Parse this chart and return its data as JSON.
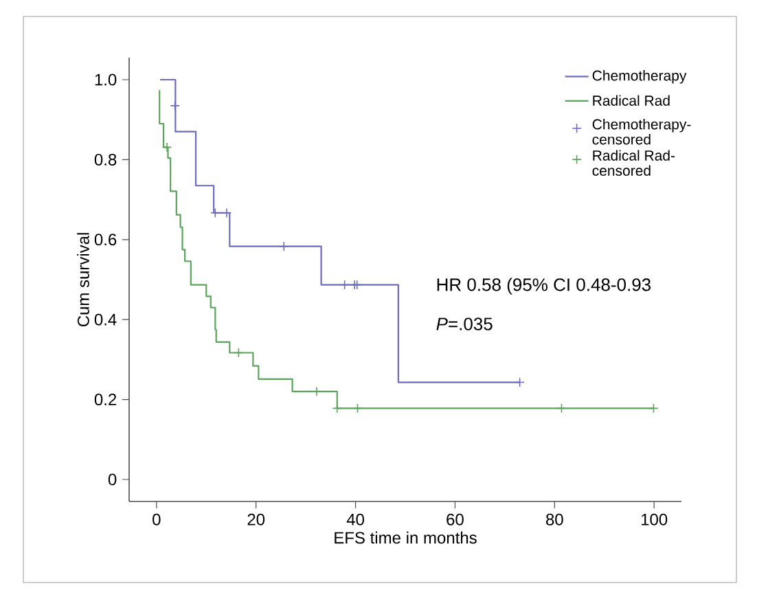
{
  "chart_data": {
    "type": "step",
    "xlabel": "EFS time in months",
    "ylabel": "Cum survival",
    "xlim": [
      -5.5,
      105.5
    ],
    "ylim": [
      -0.055,
      1.055
    ],
    "xticks": [
      0,
      20,
      40,
      60,
      80,
      100
    ],
    "yticks": [
      {
        "value": 0,
        "label": "0"
      },
      {
        "value": 0.2,
        "label": "0.2"
      },
      {
        "value": 0.4,
        "label": "0.4"
      },
      {
        "value": 0.6,
        "label": "0.6"
      },
      {
        "value": 0.8,
        "label": "0.8"
      },
      {
        "value": 1.0,
        "label": "1.0"
      }
    ],
    "legend": "top right",
    "grid": false,
    "annotations": [
      "HR 0.58 (95% CI 0.48-0.93",
      "*P*=.035"
    ],
    "series": [
      {
        "name": "Chemotherapy",
        "marker": "none",
        "color": "#6b6bc0",
        "x": [
          0.7,
          3.8,
          7.9,
          11.5,
          14.7,
          33.1,
          48.6,
          73.0
        ],
        "values": [
          1.0,
          0.87,
          0.735,
          0.667,
          0.583,
          0.487,
          0.243,
          0.243
        ]
      },
      {
        "name": "Radical Rad",
        "marker": "none",
        "color": "#5aa55a",
        "x": [
          0.6,
          0.6,
          1.4,
          2.3,
          2.8,
          4.0,
          4.8,
          5.2,
          5.7,
          6.9,
          10.0,
          10.9,
          11.8,
          12.0,
          14.7,
          19.4,
          20.5,
          27.3,
          36.3,
          100
        ],
        "values": [
          0.974,
          0.89,
          0.831,
          0.804,
          0.721,
          0.662,
          0.631,
          0.575,
          0.546,
          0.487,
          0.458,
          0.43,
          0.375,
          0.344,
          0.317,
          0.284,
          0.251,
          0.22,
          0.178,
          0.178
        ]
      },
      {
        "name": "Chemotherapy-censored",
        "type": "scatter",
        "marker": "cross",
        "color": "#6b6bc0",
        "x": [
          3.7,
          11.8,
          14.1,
          25.6,
          37.8,
          39.8,
          40.3,
          73.0
        ],
        "values": [
          0.935,
          0.667,
          0.667,
          0.583,
          0.487,
          0.487,
          0.487,
          0.243
        ]
      },
      {
        "name": "Radical Rad-censored",
        "type": "scatter",
        "marker": "cross",
        "color": "#5aa55a",
        "x": [
          2.1,
          16.5,
          32.2,
          36.3,
          40.4,
          81.4,
          99.9
        ],
        "values": [
          0.831,
          0.317,
          0.22,
          0.178,
          0.178,
          0.178,
          0.178
        ]
      }
    ]
  }
}
